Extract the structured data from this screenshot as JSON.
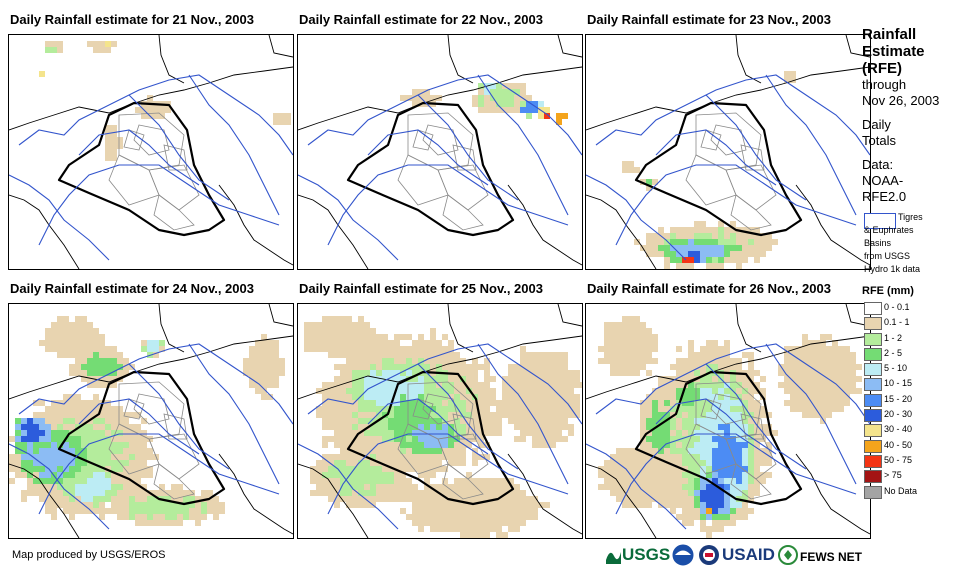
{
  "panels": [
    {
      "title": "Daily Rainfall estimate for 21 Nov., 2003",
      "intensity": 0
    },
    {
      "title": "Daily Rainfall estimate for 22 Nov., 2003",
      "intensity": 1
    },
    {
      "title": "Daily Rainfall estimate for 23 Nov., 2003",
      "intensity": 2
    },
    {
      "title": "Daily Rainfall estimate for 24 Nov., 2003",
      "intensity": 3
    },
    {
      "title": "Daily Rainfall estimate for 25 Nov., 2003",
      "intensity": 4
    },
    {
      "title": "Daily Rainfall estimate for 26 Nov., 2003",
      "intensity": 5
    }
  ],
  "sidebar": {
    "title_lines": [
      "Rainfall",
      "Estimate",
      "(RFE)"
    ],
    "through_lines": [
      "through",
      "Nov 26, 2003"
    ],
    "totals_lines": [
      "Daily",
      "Totals"
    ],
    "data_lines": [
      "Data:",
      "NOAA-",
      "RFE2.0"
    ],
    "basin_lines": [
      "Tigres",
      "& Euphrates",
      "Basins",
      "from USGS",
      "Hydro 1k data"
    ],
    "basin_color": "#3355cc"
  },
  "legend": {
    "title": "RFE (mm)",
    "items": [
      {
        "label": "0 - 0.1",
        "color": "#ffffff"
      },
      {
        "label": "0.1 - 1",
        "color": "#e8d4b0"
      },
      {
        "label": "1 - 2",
        "color": "#b4ec9c"
      },
      {
        "label": "2 - 5",
        "color": "#74dc74"
      },
      {
        "label": "5 - 10",
        "color": "#bcecf4"
      },
      {
        "label": "10 - 15",
        "color": "#8cbcf4"
      },
      {
        "label": "15 - 20",
        "color": "#4c8cf4"
      },
      {
        "label": "20 - 30",
        "color": "#2c5cdc"
      },
      {
        "label": "30 - 40",
        "color": "#f4e48c"
      },
      {
        "label": "40 - 50",
        "color": "#f4a41c"
      },
      {
        "label": "50 - 75",
        "color": "#f43414"
      },
      {
        "label": "> 75",
        "color": "#a41414"
      },
      {
        "label": "No Data",
        "color": "#a4a4a4"
      }
    ]
  },
  "footer": {
    "credit": "Map produced by USGS/EROS",
    "logos": [
      {
        "text": "USGS",
        "icon": "usgs-logo"
      },
      {
        "text": "",
        "icon": "noaa-logo"
      },
      {
        "text": "USAID",
        "icon": "usaid-logo"
      },
      {
        "text": "FEWS NET",
        "icon": "fewsnet-logo"
      }
    ]
  }
}
